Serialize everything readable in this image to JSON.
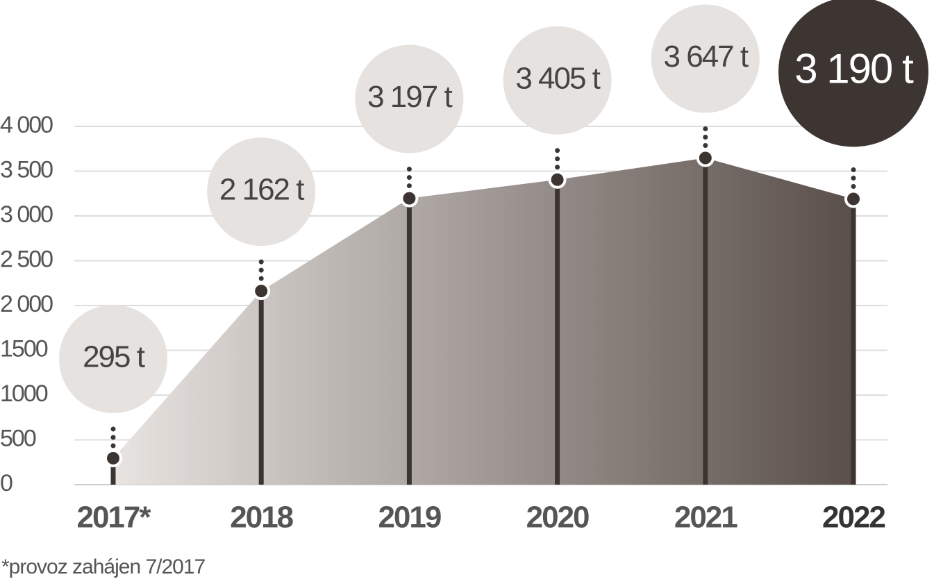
{
  "chart_data": {
    "type": "area",
    "categories": [
      "2017*",
      "2018",
      "2019",
      "2020",
      "2021",
      "2022"
    ],
    "values": [
      295,
      2162,
      3197,
      3405,
      3647,
      3190
    ],
    "value_labels": [
      "295 t",
      "2 162 t",
      "3 197 t",
      "3 405 t",
      "3 647 t",
      "3 190 t"
    ],
    "ylim": [
      0,
      4000
    ],
    "yticks": [
      0,
      500,
      1000,
      1500,
      {
        "value": 2000,
        "label": "2 000"
      },
      {
        "value": 2500,
        "label": "2 500"
      },
      {
        "value": 3000,
        "label": "3 000"
      },
      {
        "value": 3500,
        "label": "3 500"
      },
      {
        "value": 4000,
        "label": "4 000"
      }
    ],
    "grid": true,
    "colors": [
      "#e8e4e1",
      "#5a4f4a"
    ],
    "note": "*provoz zahájen 7/2017"
  }
}
